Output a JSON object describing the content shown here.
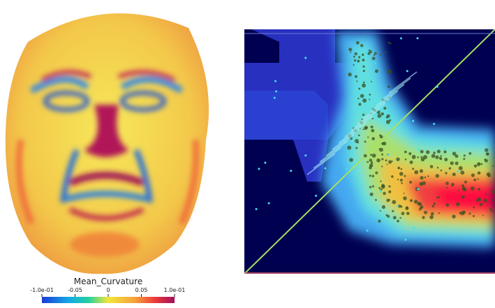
{
  "legend": {
    "title": "Mean_Curvature",
    "ticks": [
      "-1.0e-01",
      "-0.05",
      "0",
      "0.05",
      "1.0e-01"
    ]
  }
}
